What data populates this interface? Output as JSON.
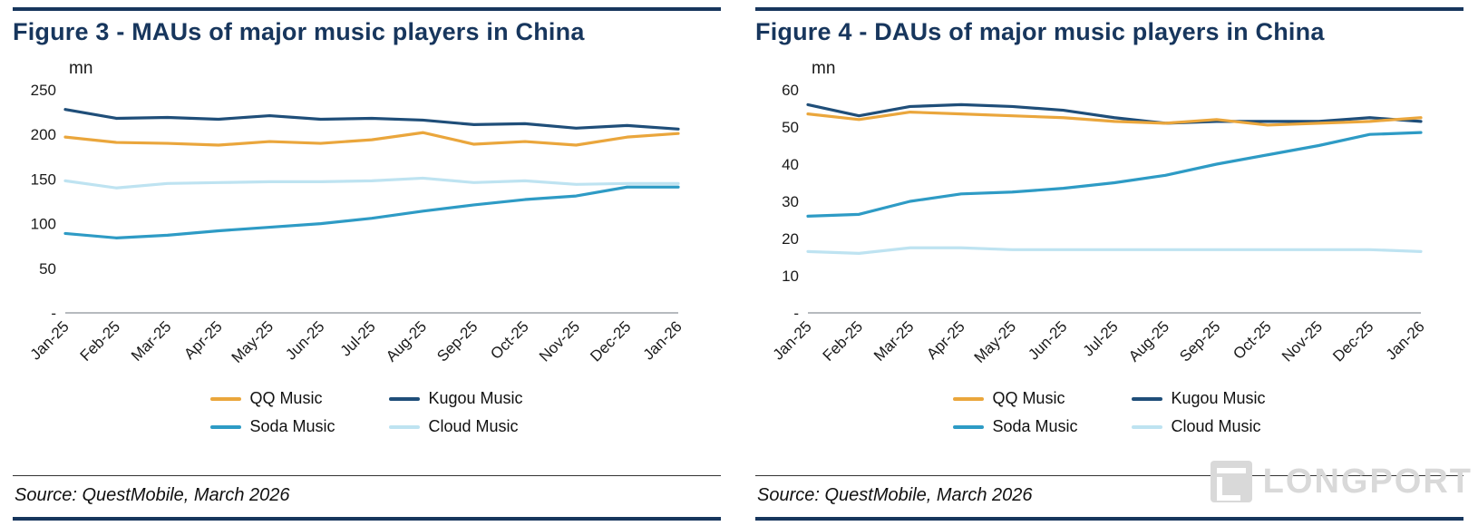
{
  "watermark": "LONGPORT",
  "colors": {
    "accent_navy": "#17365D",
    "qq": "#EAA63C",
    "kugou": "#1F4E79",
    "soda": "#2E9BC5",
    "cloud": "#BEE3F1"
  },
  "figures": [
    {
      "title": "Figure 3 - MAUs of major music players in China",
      "unit": "mn",
      "source": "Source: QuestMobile, March 2026",
      "chart_data": {
        "type": "line",
        "x": [
          "Jan-25",
          "Feb-25",
          "Mar-25",
          "Apr-25",
          "May-25",
          "Jun-25",
          "Jul-25",
          "Aug-25",
          "Sep-25",
          "Oct-25",
          "Nov-25",
          "Dec-25",
          "Jan-26"
        ],
        "ylim": [
          0,
          250
        ],
        "yticks": [
          "-",
          "50",
          "100",
          "150",
          "200",
          "250"
        ],
        "ytick_values": [
          0,
          50,
          100,
          150,
          200,
          250
        ],
        "grid": false,
        "legend_position": "bottom",
        "series": [
          {
            "name": "QQ Music",
            "color": "#EAA63C",
            "values": [
              197,
              191,
              190,
              188,
              192,
              190,
              194,
              202,
              189,
              192,
              188,
              197,
              201
            ]
          },
          {
            "name": "Kugou Music",
            "color": "#1F4E79",
            "values": [
              228,
              218,
              219,
              217,
              221,
              217,
              218,
              216,
              211,
              212,
              207,
              210,
              206
            ]
          },
          {
            "name": "Soda Music",
            "color": "#2E9BC5",
            "values": [
              89,
              84,
              87,
              92,
              96,
              100,
              106,
              114,
              121,
              127,
              131,
              141,
              141
            ]
          },
          {
            "name": "Cloud Music",
            "color": "#BEE3F1",
            "values": [
              148,
              140,
              145,
              146,
              147,
              147,
              148,
              151,
              146,
              148,
              144,
              145,
              145
            ]
          }
        ]
      }
    },
    {
      "title": "Figure 4 - DAUs of major music players in China",
      "unit": "mn",
      "source": "Source: QuestMobile, March 2026",
      "chart_data": {
        "type": "line",
        "x": [
          "Jan-25",
          "Feb-25",
          "Mar-25",
          "Apr-25",
          "May-25",
          "Jun-25",
          "Jul-25",
          "Aug-25",
          "Sep-25",
          "Oct-25",
          "Nov-25",
          "Dec-25",
          "Jan-26"
        ],
        "ylim": [
          0,
          60
        ],
        "yticks": [
          "-",
          "10",
          "20",
          "30",
          "40",
          "50",
          "60"
        ],
        "ytick_values": [
          0,
          10,
          20,
          30,
          40,
          50,
          60
        ],
        "grid": false,
        "legend_position": "bottom",
        "series": [
          {
            "name": "QQ Music",
            "color": "#EAA63C",
            "values": [
              53.5,
              52,
              54,
              53.5,
              53,
              52.5,
              51.5,
              51,
              52,
              50.5,
              51,
              51.5,
              52.5
            ]
          },
          {
            "name": "Kugou Music",
            "color": "#1F4E79",
            "values": [
              56,
              53,
              55.5,
              56,
              55.5,
              54.5,
              52.5,
              51,
              51.5,
              51.5,
              51.5,
              52.5,
              51.5
            ]
          },
          {
            "name": "Soda Music",
            "color": "#2E9BC5",
            "values": [
              26,
              26.5,
              30,
              32,
              32.5,
              33.5,
              35,
              37,
              40,
              42.5,
              45,
              48,
              48.5
            ]
          },
          {
            "name": "Cloud Music",
            "color": "#BEE3F1",
            "values": [
              16.5,
              16,
              17.5,
              17.5,
              17,
              17,
              17,
              17,
              17,
              17,
              17,
              17,
              16.5
            ]
          }
        ]
      }
    }
  ]
}
